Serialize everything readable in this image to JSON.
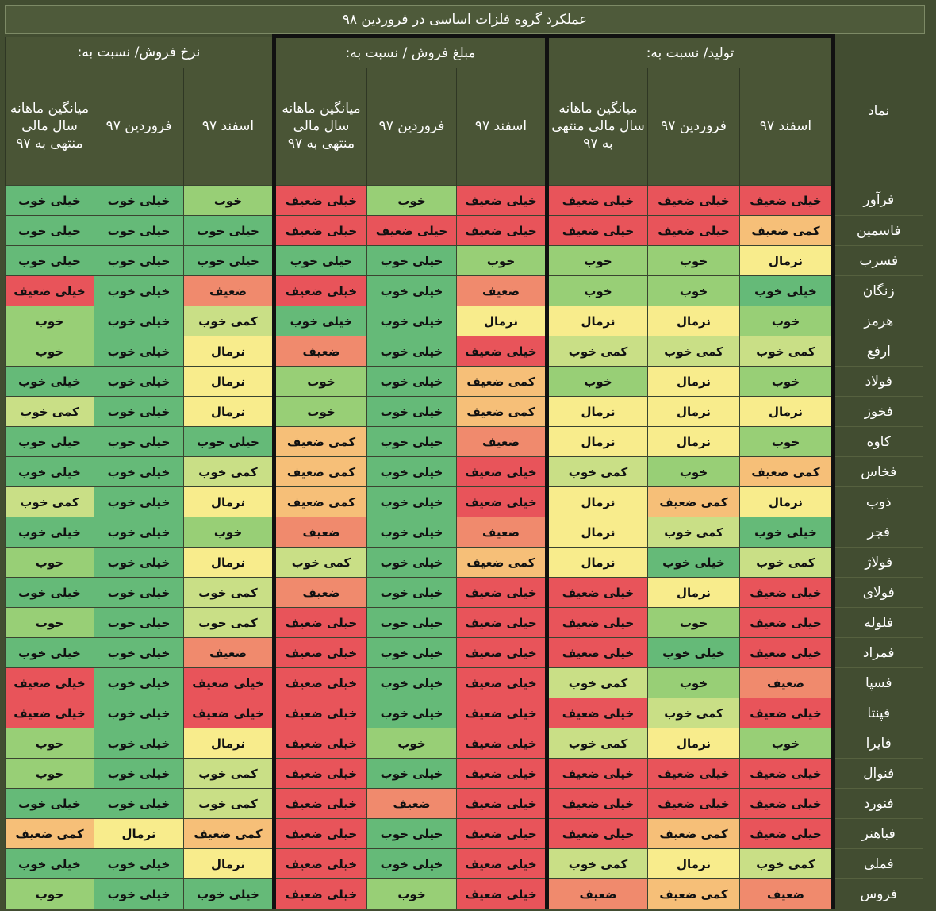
{
  "title": "عملکرد گروه فلزات اساسی در فروردین ۹۸",
  "symbol_header": "نماد",
  "groups": [
    "تولید/ نسبت به:",
    "مبلغ فروش / نسبت به:",
    "نرخ فروش/ نسبت به:"
  ],
  "subheaders": [
    "اسفند ۹۷",
    "فروردین ۹۷",
    "میانگین ماهانه سال مالی منتهی به ۹۷"
  ],
  "legend_colors": {
    "خیلی ضعیف": "#e8545a",
    "ضعیف": "#f08a6d",
    "کمی ضعیف": "#f6bf78",
    "نرمال": "#f8ec8c",
    "کمی خوب": "#c9df86",
    "خوب": "#98cf76",
    "خیلی خوب": "#65ba78"
  },
  "rows": [
    {
      "symbol": "فرآور",
      "values": [
        "خیلی ضعیف",
        "خیلی ضعیف",
        "خیلی ضعیف",
        "خیلی ضعیف",
        "خوب",
        "خیلی ضعیف",
        "خوب",
        "خیلی خوب",
        "خیلی خوب"
      ]
    },
    {
      "symbol": "فاسمین",
      "values": [
        "کمی ضعیف",
        "خیلی ضعیف",
        "خیلی ضعیف",
        "خیلی ضعیف",
        "خیلی ضعیف",
        "خیلی ضعیف",
        "خیلی خوب",
        "خیلی خوب",
        "خیلی خوب"
      ]
    },
    {
      "symbol": "فسرب",
      "values": [
        "نرمال",
        "خوب",
        "خوب",
        "خوب",
        "خیلی خوب",
        "خیلی خوب",
        "خیلی خوب",
        "خیلی خوب",
        "خیلی خوب"
      ]
    },
    {
      "symbol": "زنگان",
      "values": [
        "خیلی خوب",
        "خوب",
        "خوب",
        "ضعیف",
        "خیلی خوب",
        "خیلی ضعیف",
        "ضعیف",
        "خیلی خوب",
        "خیلی ضعیف"
      ]
    },
    {
      "symbol": "هرمز",
      "values": [
        "خوب",
        "نرمال",
        "نرمال",
        "نرمال",
        "خیلی خوب",
        "خیلی خوب",
        "کمی خوب",
        "خیلی خوب",
        "خوب"
      ]
    },
    {
      "symbol": "ارفع",
      "values": [
        "کمی خوب",
        "کمی خوب",
        "کمی خوب",
        "خیلی ضعیف",
        "خیلی خوب",
        "ضعیف",
        "نرمال",
        "خیلی خوب",
        "خوب"
      ]
    },
    {
      "symbol": "فولاد",
      "values": [
        "خوب",
        "نرمال",
        "خوب",
        "کمی ضعیف",
        "خیلی خوب",
        "خوب",
        "نرمال",
        "خیلی خوب",
        "خیلی خوب"
      ]
    },
    {
      "symbol": "فخوز",
      "values": [
        "نرمال",
        "نرمال",
        "نرمال",
        "کمی ضعیف",
        "خیلی خوب",
        "خوب",
        "نرمال",
        "خیلی خوب",
        "کمی خوب"
      ]
    },
    {
      "symbol": "کاوه",
      "values": [
        "خوب",
        "نرمال",
        "نرمال",
        "ضعیف",
        "خیلی خوب",
        "کمی ضعیف",
        "خیلی خوب",
        "خیلی خوب",
        "خیلی خوب"
      ]
    },
    {
      "symbol": "فخاس",
      "values": [
        "کمی ضعیف",
        "خوب",
        "کمی خوب",
        "خیلی ضعیف",
        "خیلی خوب",
        "کمی ضعیف",
        "کمی خوب",
        "خیلی خوب",
        "خیلی خوب"
      ]
    },
    {
      "symbol": "ذوب",
      "values": [
        "نرمال",
        "کمی ضعیف",
        "نرمال",
        "خیلی ضعیف",
        "خیلی خوب",
        "کمی ضعیف",
        "نرمال",
        "خیلی خوب",
        "کمی خوب"
      ]
    },
    {
      "symbol": "فجر",
      "values": [
        "خیلی خوب",
        "کمی خوب",
        "نرمال",
        "ضعیف",
        "خیلی خوب",
        "ضعیف",
        "خوب",
        "خیلی خوب",
        "خیلی خوب"
      ]
    },
    {
      "symbol": "فولاژ",
      "values": [
        "کمی خوب",
        "خیلی خوب",
        "نرمال",
        "کمی ضعیف",
        "خیلی خوب",
        "کمی خوب",
        "نرمال",
        "خیلی خوب",
        "خوب"
      ]
    },
    {
      "symbol": "فولای",
      "values": [
        "خیلی ضعیف",
        "نرمال",
        "خیلی ضعیف",
        "خیلی ضعیف",
        "خیلی خوب",
        "ضعیف",
        "کمی خوب",
        "خیلی خوب",
        "خیلی خوب"
      ]
    },
    {
      "symbol": "فلوله",
      "values": [
        "خیلی ضعیف",
        "خوب",
        "خیلی ضعیف",
        "خیلی ضعیف",
        "خیلی خوب",
        "خیلی ضعیف",
        "کمی خوب",
        "خیلی خوب",
        "خوب"
      ]
    },
    {
      "symbol": "فمراد",
      "values": [
        "خیلی ضعیف",
        "خیلی خوب",
        "خیلی ضعیف",
        "خیلی ضعیف",
        "خیلی خوب",
        "خیلی ضعیف",
        "ضعیف",
        "خیلی خوب",
        "خیلی خوب"
      ]
    },
    {
      "symbol": "فسپا",
      "values": [
        "ضعیف",
        "خوب",
        "کمی خوب",
        "خیلی ضعیف",
        "خیلی خوب",
        "خیلی ضعیف",
        "خیلی ضعیف",
        "خیلی خوب",
        "خیلی ضعیف"
      ]
    },
    {
      "symbol": "فپنتا",
      "values": [
        "خیلی ضعیف",
        "کمی خوب",
        "خیلی ضعیف",
        "خیلی ضعیف",
        "خیلی خوب",
        "خیلی ضعیف",
        "خیلی ضعیف",
        "خیلی خوب",
        "خیلی ضعیف"
      ]
    },
    {
      "symbol": "فایرا",
      "values": [
        "خوب",
        "نرمال",
        "کمی خوب",
        "خیلی ضعیف",
        "خوب",
        "خیلی ضعیف",
        "نرمال",
        "خیلی خوب",
        "خوب"
      ]
    },
    {
      "symbol": "فنوال",
      "values": [
        "خیلی ضعیف",
        "خیلی ضعیف",
        "خیلی ضعیف",
        "خیلی ضعیف",
        "خیلی خوب",
        "خیلی ضعیف",
        "کمی خوب",
        "خیلی خوب",
        "خوب"
      ]
    },
    {
      "symbol": "فنورد",
      "values": [
        "خیلی ضعیف",
        "خیلی ضعیف",
        "خیلی ضعیف",
        "خیلی ضعیف",
        "ضعیف",
        "خیلی ضعیف",
        "کمی خوب",
        "خیلی خوب",
        "خیلی خوب"
      ]
    },
    {
      "symbol": "فباهنر",
      "values": [
        "خیلی ضعیف",
        "کمی ضعیف",
        "خیلی ضعیف",
        "خیلی ضعیف",
        "خیلی خوب",
        "خیلی ضعیف",
        "کمی ضعیف",
        "نرمال",
        "کمی ضعیف"
      ]
    },
    {
      "symbol": "فملی",
      "values": [
        "کمی خوب",
        "نرمال",
        "کمی خوب",
        "خیلی ضعیف",
        "خیلی خوب",
        "خیلی ضعیف",
        "نرمال",
        "خیلی خوب",
        "خیلی خوب"
      ]
    },
    {
      "symbol": "فروس",
      "values": [
        "ضعیف",
        "کمی ضعیف",
        "ضعیف",
        "خیلی ضعیف",
        "خوب",
        "خیلی ضعیف",
        "خیلی خوب",
        "خیلی خوب",
        "خوب"
      ]
    }
  ]
}
